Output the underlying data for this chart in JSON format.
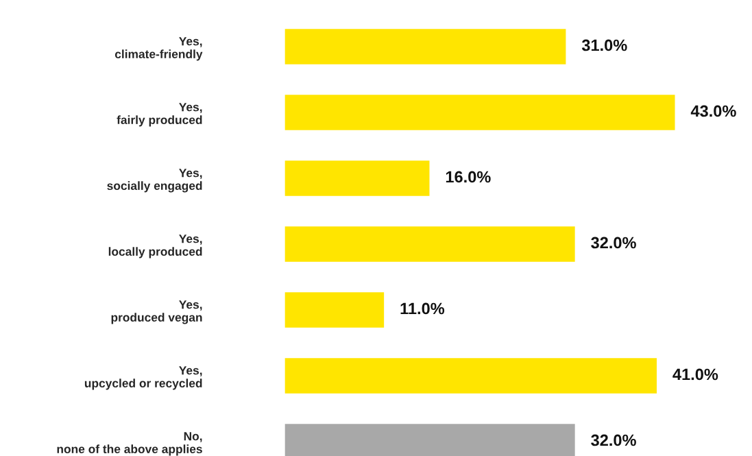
{
  "chart_data": {
    "type": "bar",
    "orientation": "horizontal",
    "categories": [
      "Yes,\nclimate-friendly",
      "Yes,\nfairly produced",
      "Yes,\nsocially engaged",
      "Yes,\nlocally produced",
      "Yes,\nproduced vegan",
      "Yes,\nupcycled or recycled",
      "No,\nnone of the above applies"
    ],
    "values": [
      31.0,
      43.0,
      16.0,
      32.0,
      11.0,
      41.0,
      32.0
    ],
    "colors": [
      "#ffe500",
      "#ffe500",
      "#ffe500",
      "#ffe500",
      "#ffe500",
      "#ffe500",
      "#a8a8a8"
    ],
    "value_labels": [
      "31.0%",
      "43.0%",
      "16.0%",
      "32.0%",
      "11.0%",
      "41.0%",
      "32.0%"
    ],
    "grid": false,
    "legend": false
  }
}
